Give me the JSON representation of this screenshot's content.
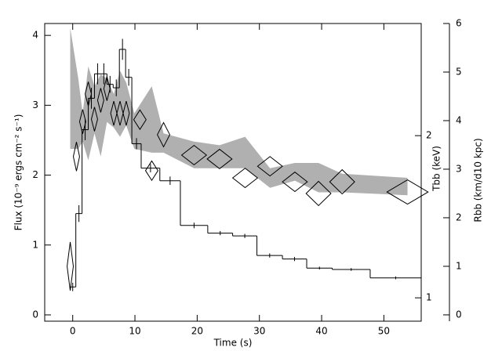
{
  "chart_data": {
    "type": "histogram",
    "xlabel": "Time (s)",
    "ylabel": "Flux (10⁻⁹ ergs cm⁻² s⁻¹)",
    "y3label": "Tbb (keV)",
    "y2label": "Rbb (km/d10 kpc)",
    "xlim": [
      -4.5,
      56
    ],
    "xticks": [
      0,
      10,
      20,
      30,
      40,
      50
    ],
    "ylim": [
      -0.09,
      4.17
    ],
    "yticks": [
      0,
      1,
      2,
      3,
      4
    ],
    "y2lim": [
      -0.13,
      6.0
    ],
    "y2ticks": [
      0,
      1,
      2,
      3,
      4,
      5,
      6
    ],
    "y3lim": [
      0.905,
      3.23
    ],
    "y3ticks": [
      1,
      2
    ],
    "y3log": true,
    "color": "#000000",
    "bins": [
      -0.5,
      0.5,
      1.5,
      2.5,
      3.5,
      4.5,
      5.5,
      6.5,
      7.5,
      8.5,
      9.5,
      11,
      14,
      17.3,
      21.7,
      25.7,
      29.6,
      33.7,
      37.6,
      41.7,
      47.8,
      56
    ],
    "values": [
      0.4,
      1.45,
      2.65,
      3.1,
      3.45,
      3.45,
      3.3,
      3.25,
      3.8,
      3.4,
      2.45,
      2.1,
      1.92,
      1.28,
      1.17,
      1.13,
      0.85,
      0.8,
      0.67,
      0.65,
      0.53
    ],
    "errors": [
      0.06,
      0.12,
      0.15,
      0.15,
      0.15,
      0.15,
      0.12,
      0.12,
      0.15,
      0.12,
      0.08,
      0.06,
      0.06,
      0.04,
      0.03,
      0.03,
      0.03,
      0.03,
      0.02,
      0.02,
      0.02
    ],
    "diamonds": {
      "axis": "y2",
      "color": "#000000",
      "x": [
        -0.4,
        0.6,
        1.6,
        2.5,
        3.5,
        4.5,
        5.5,
        6.6,
        7.6,
        8.6,
        10.8,
        12.7,
        14.6,
        19.5,
        23.6,
        27.7,
        31.7,
        35.7,
        39.5,
        43.3,
        53.8
      ],
      "values": [
        1.0,
        3.26,
        3.98,
        4.55,
        4.03,
        4.42,
        4.66,
        4.15,
        4.15,
        4.15,
        4.02,
        2.97,
        3.71,
        3.29,
        3.21,
        2.82,
        3.06,
        2.74,
        2.5,
        2.74,
        2.53
      ],
      "xerr": [
        0.5,
        0.5,
        0.5,
        0.5,
        0.5,
        0.5,
        0.5,
        0.5,
        0.5,
        0.5,
        1,
        1,
        1,
        2,
        2,
        2,
        2,
        2,
        2,
        2,
        3.3
      ],
      "yerr": [
        0.5,
        0.3,
        0.25,
        0.25,
        0.25,
        0.25,
        0.25,
        0.25,
        0.25,
        0.25,
        0.2,
        0.2,
        0.25,
        0.2,
        0.2,
        0.2,
        0.2,
        0.2,
        0.25,
        0.25,
        0.25
      ]
    },
    "band": {
      "axis": "y3",
      "color": "#b0b0b0",
      "x": [
        -0.4,
        0.9,
        1.6,
        2.5,
        3.5,
        4.5,
        5.5,
        6.6,
        7.6,
        8.6,
        9.9,
        12.7,
        14.6,
        19.5,
        23.6,
        27.7,
        31.7,
        35.7,
        39.5,
        43.3,
        53.8
      ],
      "upper": [
        3.17,
        2.55,
        2.2,
        2.69,
        2.47,
        2.6,
        2.55,
        2.39,
        2.64,
        2.51,
        2.2,
        2.47,
        2.02,
        1.95,
        1.92,
        1.99,
        1.74,
        1.78,
        1.78,
        1.7,
        1.67
      ],
      "lower": [
        1.89,
        1.89,
        1.95,
        1.8,
        2.02,
        1.83,
        2.12,
        2.07,
        1.99,
        2.09,
        1.89,
        1.86,
        1.86,
        1.74,
        1.74,
        1.74,
        1.6,
        1.65,
        1.57,
        1.57,
        1.55
      ]
    }
  }
}
